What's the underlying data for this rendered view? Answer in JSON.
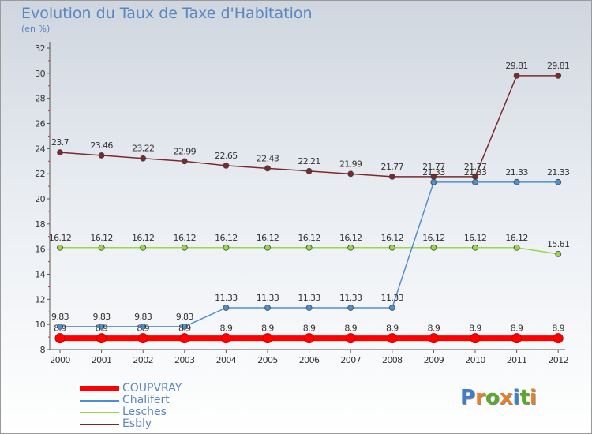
{
  "title": "Evolution du Taux de Taxe d'Habitation",
  "unit": "(en %)",
  "logo": "Proxiti",
  "colors": {
    "axis": "#555555",
    "title": "#5a86c0",
    "label": "#333333"
  },
  "chart_data": {
    "type": "line",
    "title": "Evolution du Taux de Taxe d'Habitation",
    "ylabel": "(en %)",
    "xlabel": "",
    "x": [
      "2000",
      "2001",
      "2002",
      "2003",
      "2004",
      "2005",
      "2006",
      "2007",
      "2008",
      "2009",
      "2010",
      "2011",
      "2012"
    ],
    "ylim": [
      8,
      32
    ],
    "yticks": [
      8,
      10,
      12,
      14,
      16,
      18,
      20,
      22,
      24,
      26,
      28,
      30,
      32
    ],
    "grid": false,
    "legend": "bottom-left",
    "series": [
      {
        "name": "COUPVRAY",
        "color": "#ff0000",
        "values": [
          8.9,
          8.9,
          8.9,
          8.9,
          8.9,
          8.9,
          8.9,
          8.9,
          8.9,
          8.9,
          8.9,
          8.9,
          8.9
        ],
        "labels": [
          "8.9",
          "8.9",
          "8.9",
          "8.9",
          "8.9",
          "8.9",
          "8.9",
          "8.9",
          "8.9",
          "8.9",
          "8.9",
          "8.9",
          "8.9"
        ]
      },
      {
        "name": "Chalifert",
        "color": "#4f8fd0",
        "values": [
          9.83,
          9.83,
          9.83,
          9.83,
          11.33,
          11.33,
          11.33,
          11.33,
          11.33,
          21.33,
          21.33,
          21.33,
          21.33
        ],
        "labels": [
          "9.83",
          "9.83",
          "9.83",
          "9.83",
          "11.33",
          "11.33",
          "11.33",
          "11.33",
          "11.33",
          "21.33",
          "21.33",
          "21.33",
          "21.33"
        ]
      },
      {
        "name": "Lesches",
        "color": "#9ad64a",
        "values": [
          16.12,
          16.12,
          16.12,
          16.12,
          16.12,
          16.12,
          16.12,
          16.12,
          16.12,
          16.12,
          16.12,
          16.12,
          15.61
        ],
        "labels": [
          "16.12",
          "16.12",
          "16.12",
          "16.12",
          "16.12",
          "16.12",
          "16.12",
          "16.12",
          "16.12",
          "16.12",
          "16.12",
          "16.12",
          "15.61"
        ]
      },
      {
        "name": "Esbly",
        "color": "#7a2a2a",
        "values": [
          23.7,
          23.46,
          23.22,
          22.99,
          22.65,
          22.43,
          22.21,
          21.99,
          21.77,
          21.77,
          21.77,
          29.81,
          29.81
        ],
        "labels": [
          "23.7",
          "23.46",
          "23.22",
          "22.99",
          "22.65",
          "22.43",
          "22.21",
          "21.99",
          "21.77",
          "21.77",
          "21.77",
          "29.81",
          "29.81"
        ]
      }
    ]
  }
}
